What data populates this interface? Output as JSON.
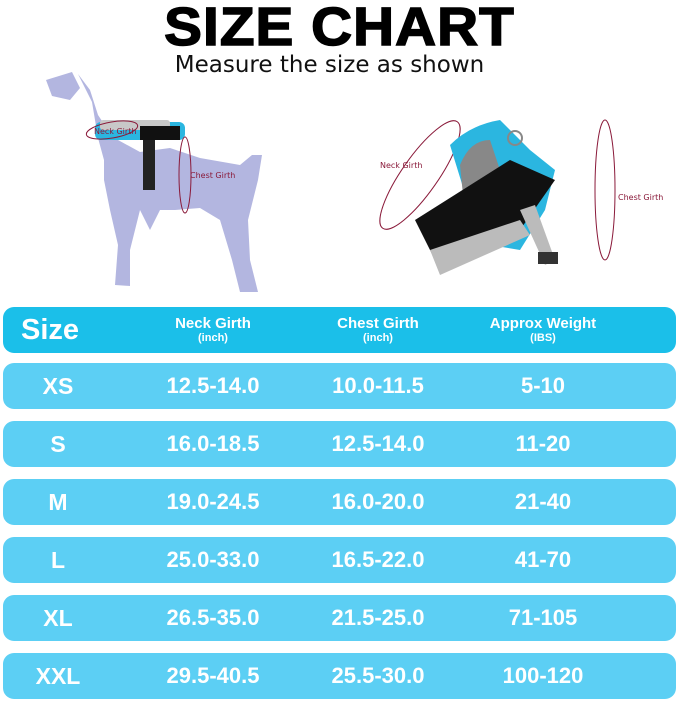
{
  "title": "SIZE CHART",
  "subtitle": "Measure the size as shown",
  "illustrations": {
    "dog_labels": {
      "neck": "Neck Girth",
      "chest": "Chest Girth"
    },
    "harness_labels": {
      "neck": "Neck Girth",
      "chest": "Chest Girth"
    }
  },
  "colors": {
    "header": "#1bbfe9",
    "row": "#5ccff4",
    "dog": "#b3b6e0",
    "harness": "#2bb6e0",
    "measure_line": "#8a1a3a"
  },
  "table": {
    "headers": [
      {
        "main": "Size",
        "sub": ""
      },
      {
        "main": "Neck Girth",
        "sub": "(inch)"
      },
      {
        "main": "Chest Girth",
        "sub": "(inch)"
      },
      {
        "main": "Approx Weight",
        "sub": "(IBS)"
      }
    ],
    "rows": [
      [
        "XS",
        "12.5-14.0",
        "10.0-11.5",
        "5-10"
      ],
      [
        "S",
        "16.0-18.5",
        "12.5-14.0",
        "11-20"
      ],
      [
        "M",
        "19.0-24.5",
        "16.0-20.0",
        "21-40"
      ],
      [
        "L",
        "25.0-33.0",
        "16.5-22.0",
        "41-70"
      ],
      [
        "XL",
        "26.5-35.0",
        "21.5-25.0",
        "71-105"
      ],
      [
        "XXL",
        "29.5-40.5",
        "25.5-30.0",
        "100-120"
      ]
    ]
  }
}
